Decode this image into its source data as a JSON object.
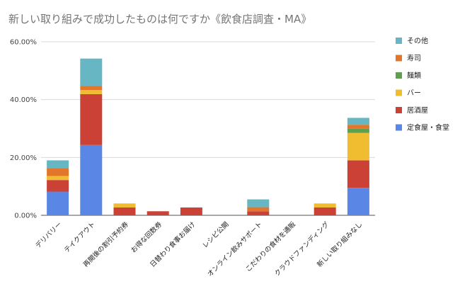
{
  "chart_data": {
    "type": "bar",
    "stacked": true,
    "title": "新しい取り組みで成功したものは何ですか《飲食店調査・MA》",
    "xlabel": "",
    "ylabel": "",
    "ylim": [
      0,
      60
    ],
    "yticks": [
      "0.00%",
      "20.00%",
      "40.00%",
      "60.00%"
    ],
    "grid": true,
    "legend_position": "right",
    "categories": [
      "デリバリー",
      "テイクアウト",
      "再開後の割引予約券",
      "お得な回数券",
      "日替わり食事お届け",
      "レシピ公開",
      "オンライン飲みサポート",
      "こだわりの食材を通販",
      "クラウドファンディング",
      "新しい取り組みなし"
    ],
    "series": [
      {
        "name": "定食屋・食堂",
        "color": "#5a86e6",
        "values": [
          8.2,
          24.3,
          0,
          0,
          0,
          0,
          0,
          0,
          0,
          9.5
        ]
      },
      {
        "name": "居酒屋",
        "color": "#cc4136",
        "values": [
          4.0,
          17.6,
          2.7,
          1.4,
          2.7,
          0,
          1.4,
          0,
          2.7,
          9.5
        ]
      },
      {
        "name": "バー",
        "color": "#f0bd30",
        "values": [
          1.4,
          1.4,
          1.4,
          0,
          0,
          0,
          0,
          0,
          1.4,
          9.5
        ]
      },
      {
        "name": "麺類",
        "color": "#5ea04f",
        "values": [
          0,
          0,
          0,
          0,
          0,
          0,
          0,
          0,
          0,
          1.4
        ]
      },
      {
        "name": "寿司",
        "color": "#e3762b",
        "values": [
          2.7,
          1.4,
          0,
          0,
          0,
          0,
          1.4,
          0,
          0,
          1.4
        ]
      },
      {
        "name": "その他",
        "color": "#66b7c3",
        "values": [
          2.7,
          9.5,
          0,
          0,
          0,
          0,
          2.7,
          0,
          0,
          2.4
        ]
      }
    ]
  }
}
